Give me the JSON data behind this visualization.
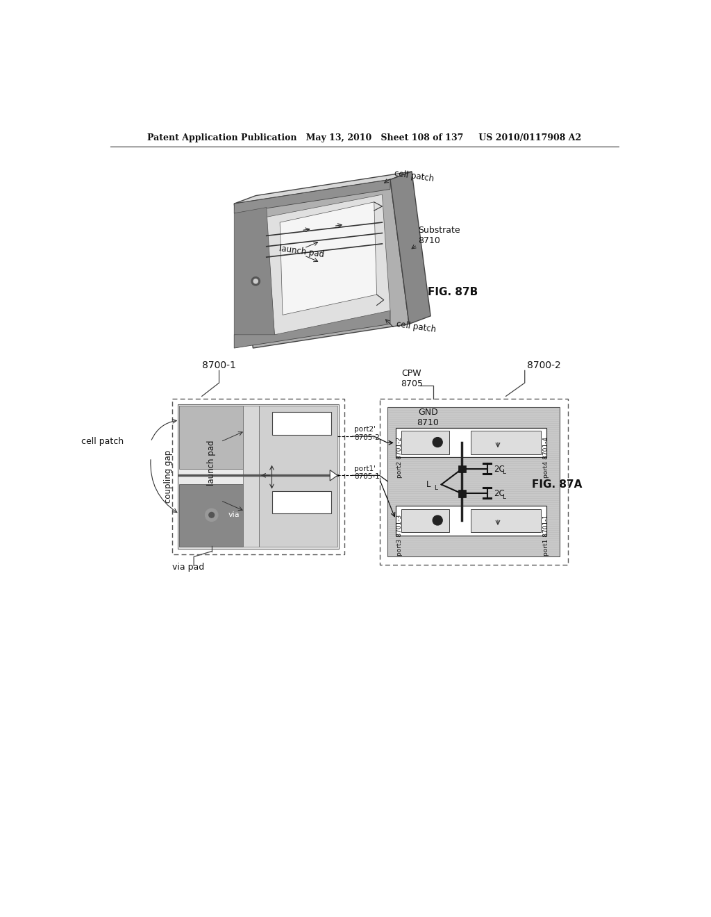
{
  "header_text": "Patent Application Publication   May 13, 2010   Sheet 108 of 137     US 2010/0117908 A2",
  "fig_87a_label": "FIG. 87A",
  "fig_87b_label": "FIG. 87B",
  "background_color": "#ffffff"
}
